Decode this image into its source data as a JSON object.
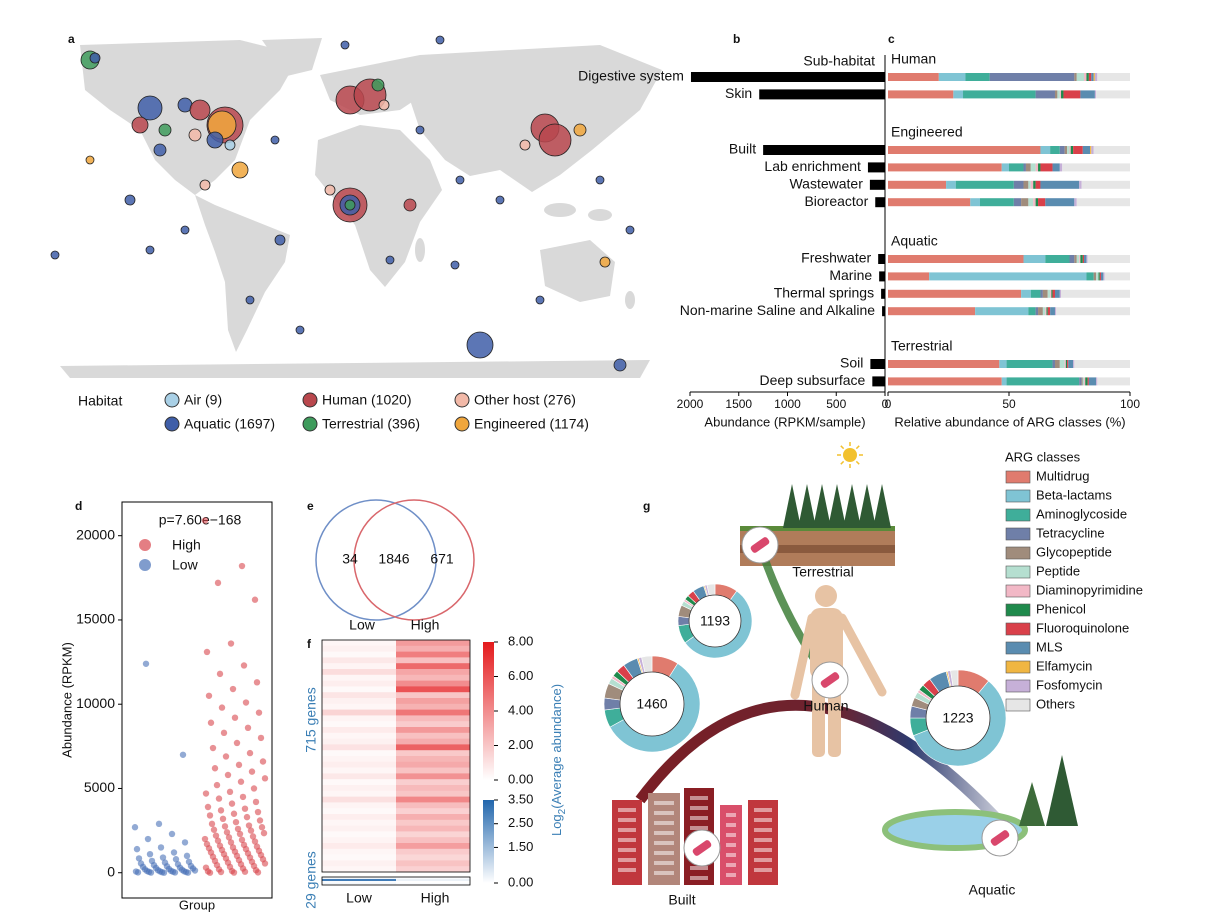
{
  "chart_data": [
    {
      "type": "map",
      "panel": "a",
      "legend_title": "Habitat",
      "series": [
        {
          "name": "Air (9)",
          "color": "#a9d0e6"
        },
        {
          "name": "Aquatic (1697)",
          "color": "#3f5ea8"
        },
        {
          "name": "Human (1020)",
          "color": "#b9474d"
        },
        {
          "name": "Terrestrial (396)",
          "color": "#3e9b5c"
        },
        {
          "name": "Other host (276)",
          "color": "#f2b9a8"
        },
        {
          "name": "Engineered (1174)",
          "color": "#f0a63c"
        }
      ]
    },
    {
      "type": "hbar",
      "panel": "b",
      "title": "Sub-habitat",
      "color": "#000000",
      "groups": [
        {
          "name": "Human",
          "categories": [
            "Digestive system",
            "Skin"
          ],
          "values": [
            1990,
            1290
          ]
        },
        {
          "name": "Engineered",
          "categories": [
            "Built",
            "Lab enrichment",
            "Wastewater",
            "Bioreactor"
          ],
          "values": [
            1250,
            175,
            155,
            100
          ]
        },
        {
          "name": "Aquatic",
          "categories": [
            "Freshwater",
            "Marine",
            "Thermal springs",
            "Non-marine Saline and Alkaline"
          ],
          "values": [
            70,
            60,
            40,
            30
          ]
        },
        {
          "name": "Terrestrial",
          "categories": [
            "Soil",
            "Deep subsurface"
          ],
          "values": [
            150,
            130
          ]
        }
      ],
      "xlim": [
        2000,
        0
      ],
      "xticks": [
        2000,
        1500,
        1000,
        500,
        0
      ],
      "xlabel": "Abundance (RPKM/sample)"
    },
    {
      "type": "stacked_hbar",
      "panel": "c",
      "xlim": [
        0,
        100
      ],
      "xticks": [
        0,
        50,
        100
      ],
      "xlabel": "Relative abundance of ARG classes (%)",
      "series": [
        {
          "name": "Multidrug",
          "color": "#e07b6e",
          "values": [
            21,
            27,
            63,
            47,
            24,
            34,
            56,
            17,
            55,
            36,
            46,
            47
          ]
        },
        {
          "name": "Beta-lactams",
          "color": "#7fc4d4",
          "values": [
            11,
            4,
            4,
            3,
            4,
            4,
            9,
            65,
            4,
            22,
            3,
            2
          ]
        },
        {
          "name": "Aminoglycoside",
          "color": "#3fae9a",
          "values": [
            10,
            30,
            4,
            6,
            24,
            14,
            10,
            3,
            4,
            3,
            19,
            30
          ]
        },
        {
          "name": "Tetracycline",
          "color": "#6f7fa8",
          "values": [
            35,
            8,
            2,
            1,
            4,
            3,
            2,
            0,
            1,
            1,
            1,
            1
          ]
        },
        {
          "name": "Glycopeptide",
          "color": "#a08c7c",
          "values": [
            1,
            1,
            1,
            2,
            2,
            3,
            1,
            1,
            2,
            2,
            2,
            0.5
          ]
        },
        {
          "name": "Peptide",
          "color": "#b5dfd0",
          "values": [
            3,
            1,
            1,
            2,
            1,
            2,
            1,
            1,
            1,
            1,
            2,
            0.5
          ]
        },
        {
          "name": "Diaminopyrimidine",
          "color": "#f2b8c6",
          "values": [
            1,
            0.5,
            0.5,
            1,
            1,
            1,
            0.5,
            0,
            0.5,
            0.5,
            0.5,
            0.5
          ]
        },
        {
          "name": "Phenicol",
          "color": "#1f8a4c",
          "values": [
            1,
            1,
            1,
            1,
            1,
            1,
            1,
            0.5,
            0.5,
            0.5,
            0.5,
            1
          ]
        },
        {
          "name": "Fluoroquinolone",
          "color": "#d9404a",
          "values": [
            1,
            7,
            4,
            5,
            2,
            3,
            0.5,
            0.5,
            1,
            1,
            0.5,
            0.5
          ]
        },
        {
          "name": "MLS",
          "color": "#5a8cb0",
          "values": [
            1,
            6,
            3,
            3,
            16,
            12,
            1,
            1,
            2,
            2,
            2,
            3
          ]
        },
        {
          "name": "Elfamycin",
          "color": "#f0b642",
          "values": [
            0.5,
            0,
            0.5,
            0,
            0,
            0,
            0,
            0,
            0,
            0,
            0,
            0
          ]
        },
        {
          "name": "Fosfomycin",
          "color": "#c6b0d8",
          "values": [
            1,
            0.5,
            1,
            1,
            1,
            1,
            0.5,
            0.5,
            0.5,
            0.5,
            0.5,
            0.5
          ]
        },
        {
          "name": "Others",
          "color": "#e6e6e6",
          "values": [
            13.5,
            14,
            15,
            28,
            20,
            22,
            17.5,
            10.5,
            28.5,
            30.5,
            23,
            13.5
          ]
        }
      ]
    },
    {
      "type": "strip",
      "panel": "d",
      "annotation": "p=7.60e−168",
      "ylabel": "Abundance (RPKM)",
      "xlabel": "Group",
      "ylim": [
        -1500,
        22000
      ],
      "yticks": [
        0,
        5000,
        10000,
        15000,
        20000
      ],
      "series": [
        {
          "name": "High",
          "color": "#d9474e",
          "values": [
            20900,
            18200,
            17200,
            16200,
            13600,
            13100,
            12300,
            11800,
            11300,
            10900,
            10500,
            10100,
            9800,
            9500,
            9200,
            8900,
            8600,
            8300,
            8000,
            7700,
            7400,
            7100,
            6900,
            6600,
            6400,
            6200,
            6000,
            5800,
            5600,
            5400,
            5200,
            5000,
            4800,
            4700,
            4500,
            4400,
            4200,
            4100,
            3900,
            3800,
            3700,
            3600,
            3500,
            3400,
            3300,
            3200,
            3100,
            3000,
            2900,
            2800,
            2750,
            2700,
            2600,
            2550,
            2500,
            2400,
            2350,
            2300,
            2200,
            2150,
            2100,
            2000,
            1950,
            1900,
            1850,
            1800,
            1700,
            1650,
            1600,
            1550,
            1500,
            1450,
            1400,
            1350,
            1300,
            1250,
            1200,
            1150,
            1100,
            1050,
            1000,
            950,
            900,
            850,
            800,
            750,
            700,
            650,
            600,
            550,
            500,
            450,
            400,
            350,
            300,
            250,
            200,
            150,
            100,
            80,
            60,
            40,
            20,
            10,
            0
          ]
        },
        {
          "name": "Low",
          "color": "#4a72b8",
          "values": [
            12400,
            7000,
            2900,
            2700,
            2300,
            2000,
            1800,
            1500,
            1400,
            1200,
            1100,
            1000,
            900,
            850,
            800,
            700,
            650,
            600,
            550,
            500,
            450,
            400,
            380,
            350,
            300,
            280,
            250,
            220,
            200,
            180,
            150,
            130,
            110,
            100,
            90,
            80,
            70,
            60,
            50,
            40,
            30,
            20,
            15,
            10,
            5,
            0
          ]
        }
      ]
    },
    {
      "type": "venn",
      "panel": "e",
      "sets": [
        "Low",
        "High"
      ],
      "values": [
        34,
        1846,
        671
      ],
      "colors": [
        "#6f8fc7",
        "#d9676c"
      ]
    },
    {
      "type": "heatmap",
      "panel": "f",
      "x": [
        "Low",
        "High"
      ],
      "blocks": [
        {
          "label": "715 genes",
          "values": [
            [
              0.3,
              0.5,
              0.2,
              0.8,
              0.4,
              1.2,
              0.3,
              0.6,
              0.2,
              0.9,
              0.5,
              0.3,
              1.5,
              0.4,
              0.2,
              0.7,
              0.3,
              0.5,
              1.0,
              0.2,
              0.4,
              0.6,
              0.3,
              0.8,
              0.2,
              0.5,
              0.3,
              1.1,
              0.4,
              0.2,
              0.6,
              0.3,
              0.5,
              0.2,
              0.4,
              0.7,
              0.3,
              0.2,
              0.5,
              0.3
            ],
            [
              3.5,
              2.8,
              4.5,
              2.2,
              5.2,
              3.1,
              2.5,
              4.0,
              6.0,
              2.0,
              3.3,
              2.7,
              4.8,
              2.4,
              1.8,
              3.6,
              2.2,
              2.9,
              5.5,
              1.9,
              2.6,
              3.0,
              2.1,
              3.8,
              1.7,
              2.4,
              2.0,
              4.2,
              2.3,
              1.6,
              2.8,
              1.9,
              2.5,
              1.5,
              2.2,
              3.4,
              1.8,
              1.4,
              2.1,
              1.6
            ]
          ]
        },
        {
          "label": "29 genes",
          "values": [
            [
              0.2,
              3.0,
              0.1,
              0.2
            ],
            [
              0.1,
              0.3,
              0.0,
              0.1
            ]
          ]
        }
      ],
      "colorbars": [
        {
          "lim": [
            0,
            8
          ],
          "colors": [
            "#ffffff",
            "#e41a1c"
          ],
          "ticks": [
            {
              "value": 0,
              "label": "0.00"
            },
            {
              "value": 2,
              "label": "2.00"
            },
            {
              "value": 4,
              "label": "4.00"
            },
            {
              "value": 6,
              "label": "6.00"
            },
            {
              "value": 8,
              "label": "8.00"
            }
          ]
        },
        {
          "lim": [
            0,
            3.5
          ],
          "colors": [
            "#ffffff",
            "#2166ac"
          ],
          "ticks": [
            {
              "value": 0,
              "label": "0.00"
            },
            {
              "value": 1.5,
              "label": "1.50"
            },
            {
              "value": 2.5,
              "label": "2.50"
            },
            {
              "value": 3.5,
              "label": "3.50"
            }
          ]
        }
      ],
      "colorbar_label": [
        "Log",
        "2",
        "(Average abundance)"
      ]
    },
    {
      "type": "donut",
      "panel": "g",
      "legend_title": "ARG classes",
      "scene_labels": [
        "Terrestrial",
        "Human",
        "Built",
        "Aquatic"
      ],
      "rings": [
        {
          "center": 1193,
          "values": [
            10,
            55,
            8,
            4,
            5,
            2,
            1,
            2,
            3,
            5,
            0.5,
            1,
            3.5
          ]
        },
        {
          "center": 1460,
          "values": [
            9,
            58,
            6,
            4,
            5,
            2,
            1,
            2,
            3,
            5,
            0.5,
            1,
            3.5
          ]
        },
        {
          "center": 1223,
          "values": [
            11,
            58,
            6,
            4,
            3,
            2,
            1,
            2,
            3,
            6,
            0.5,
            1,
            2.5
          ]
        }
      ]
    }
  ]
}
